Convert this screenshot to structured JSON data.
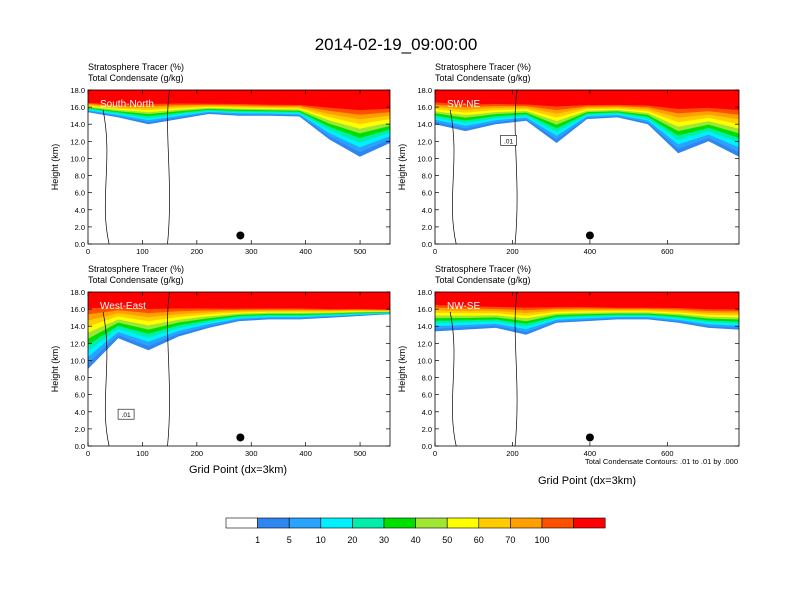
{
  "title": "2014-02-19_09:00:00",
  "panel_title_line1": "Stratosphere Tracer   (%)",
  "panel_title_line2": "Total Condensate   (g/kg)",
  "ylabel": "Height (km)",
  "xlabel": "Grid Point (dx=3km)",
  "contour_note": "Total Condensate Contours: .01 to .01 by .000",
  "colors": {
    "levels": [
      "#ffffff",
      "#2f86f0",
      "#2aa3ff",
      "#00f0ff",
      "#00eeaa",
      "#00e000",
      "#a0e632",
      "#ffff00",
      "#ffcc00",
      "#ffa000",
      "#ff5000",
      "#ff0000"
    ]
  },
  "chart_data": [
    {
      "type": "contour",
      "panel": "South-North",
      "label": "South-North",
      "xlim": [
        0,
        555
      ],
      "xticks": [
        "0",
        "100",
        "200",
        "300",
        "400",
        "500"
      ],
      "ylim": [
        0,
        18
      ],
      "yticks": [
        "0.0",
        "2.0",
        "4.0",
        "6.0",
        "8.0",
        "10.0",
        "12.0",
        "14.0",
        "16.0",
        "18.0"
      ],
      "marker_x": 280,
      "tracer_top_km": [
        16.6,
        16.4,
        16.6,
        16.6,
        16.5,
        16.5,
        16.4,
        16.4,
        16.3,
        16.2,
        16.2
      ],
      "tracer_bottom_km": [
        15.4,
        14.8,
        14.0,
        14.6,
        15.2,
        15.0,
        15.0,
        14.9,
        12.2,
        10.2,
        11.8
      ],
      "contour_labels": []
    },
    {
      "type": "contour",
      "panel": "SW-NE",
      "label": "SW-NE",
      "xlim": [
        0,
        785
      ],
      "xticks": [
        "0",
        "200",
        "400",
        "600"
      ],
      "ylim": [
        0,
        18
      ],
      "yticks": [
        "0.0",
        "2.0",
        "4.0",
        "6.0",
        "8.0",
        "10.0",
        "12.0",
        "14.0",
        "16.0",
        "18.0"
      ],
      "marker_x": 400,
      "tracer_top_km": [
        16.8,
        16.6,
        16.6,
        16.5,
        16.5,
        16.4,
        16.4,
        16.4,
        16.3,
        16.3,
        16.2
      ],
      "tracer_bottom_km": [
        14.0,
        13.2,
        14.0,
        14.4,
        11.8,
        14.6,
        14.8,
        14.0,
        10.6,
        12.0,
        10.2
      ],
      "contour_labels": [
        ".01"
      ]
    },
    {
      "type": "contour",
      "panel": "West-East",
      "label": "West-East",
      "xlim": [
        0,
        555
      ],
      "xticks": [
        "0",
        "100",
        "200",
        "300",
        "400",
        "500"
      ],
      "ylim": [
        0,
        18
      ],
      "yticks": [
        "0.0",
        "2.0",
        "4.0",
        "6.0",
        "8.0",
        "10.0",
        "12.0",
        "14.0",
        "16.0",
        "18.0"
      ],
      "marker_x": 280,
      "tracer_top_km": [
        16.8,
        16.6,
        16.5,
        16.4,
        16.3,
        16.2,
        16.2,
        16.2,
        16.1,
        16.1,
        16.0
      ],
      "tracer_bottom_km": [
        9.0,
        12.6,
        11.2,
        12.8,
        13.8,
        14.6,
        14.8,
        14.8,
        15.0,
        15.2,
        15.4
      ],
      "contour_labels": [
        ".01"
      ]
    },
    {
      "type": "contour",
      "panel": "NW-SE",
      "label": "NW-SE",
      "xlim": [
        0,
        785
      ],
      "xticks": [
        "0",
        "200",
        "400",
        "600"
      ],
      "ylim": [
        0,
        18
      ],
      "yticks": [
        "0.0",
        "2.0",
        "4.0",
        "6.0",
        "8.0",
        "10.0",
        "12.0",
        "14.0",
        "16.0",
        "18.0"
      ],
      "marker_x": 400,
      "tracer_top_km": [
        16.8,
        16.6,
        16.5,
        16.5,
        16.4,
        16.4,
        16.3,
        16.3,
        16.3,
        16.2,
        16.2
      ],
      "tracer_bottom_km": [
        13.4,
        13.6,
        13.8,
        13.0,
        14.4,
        14.6,
        14.8,
        14.8,
        14.4,
        13.8,
        13.6
      ],
      "contour_labels": []
    }
  ],
  "colorbar": {
    "labels": [
      "1",
      "5",
      "10",
      "20",
      "30",
      "40",
      "50",
      "60",
      "70",
      "100"
    ]
  }
}
